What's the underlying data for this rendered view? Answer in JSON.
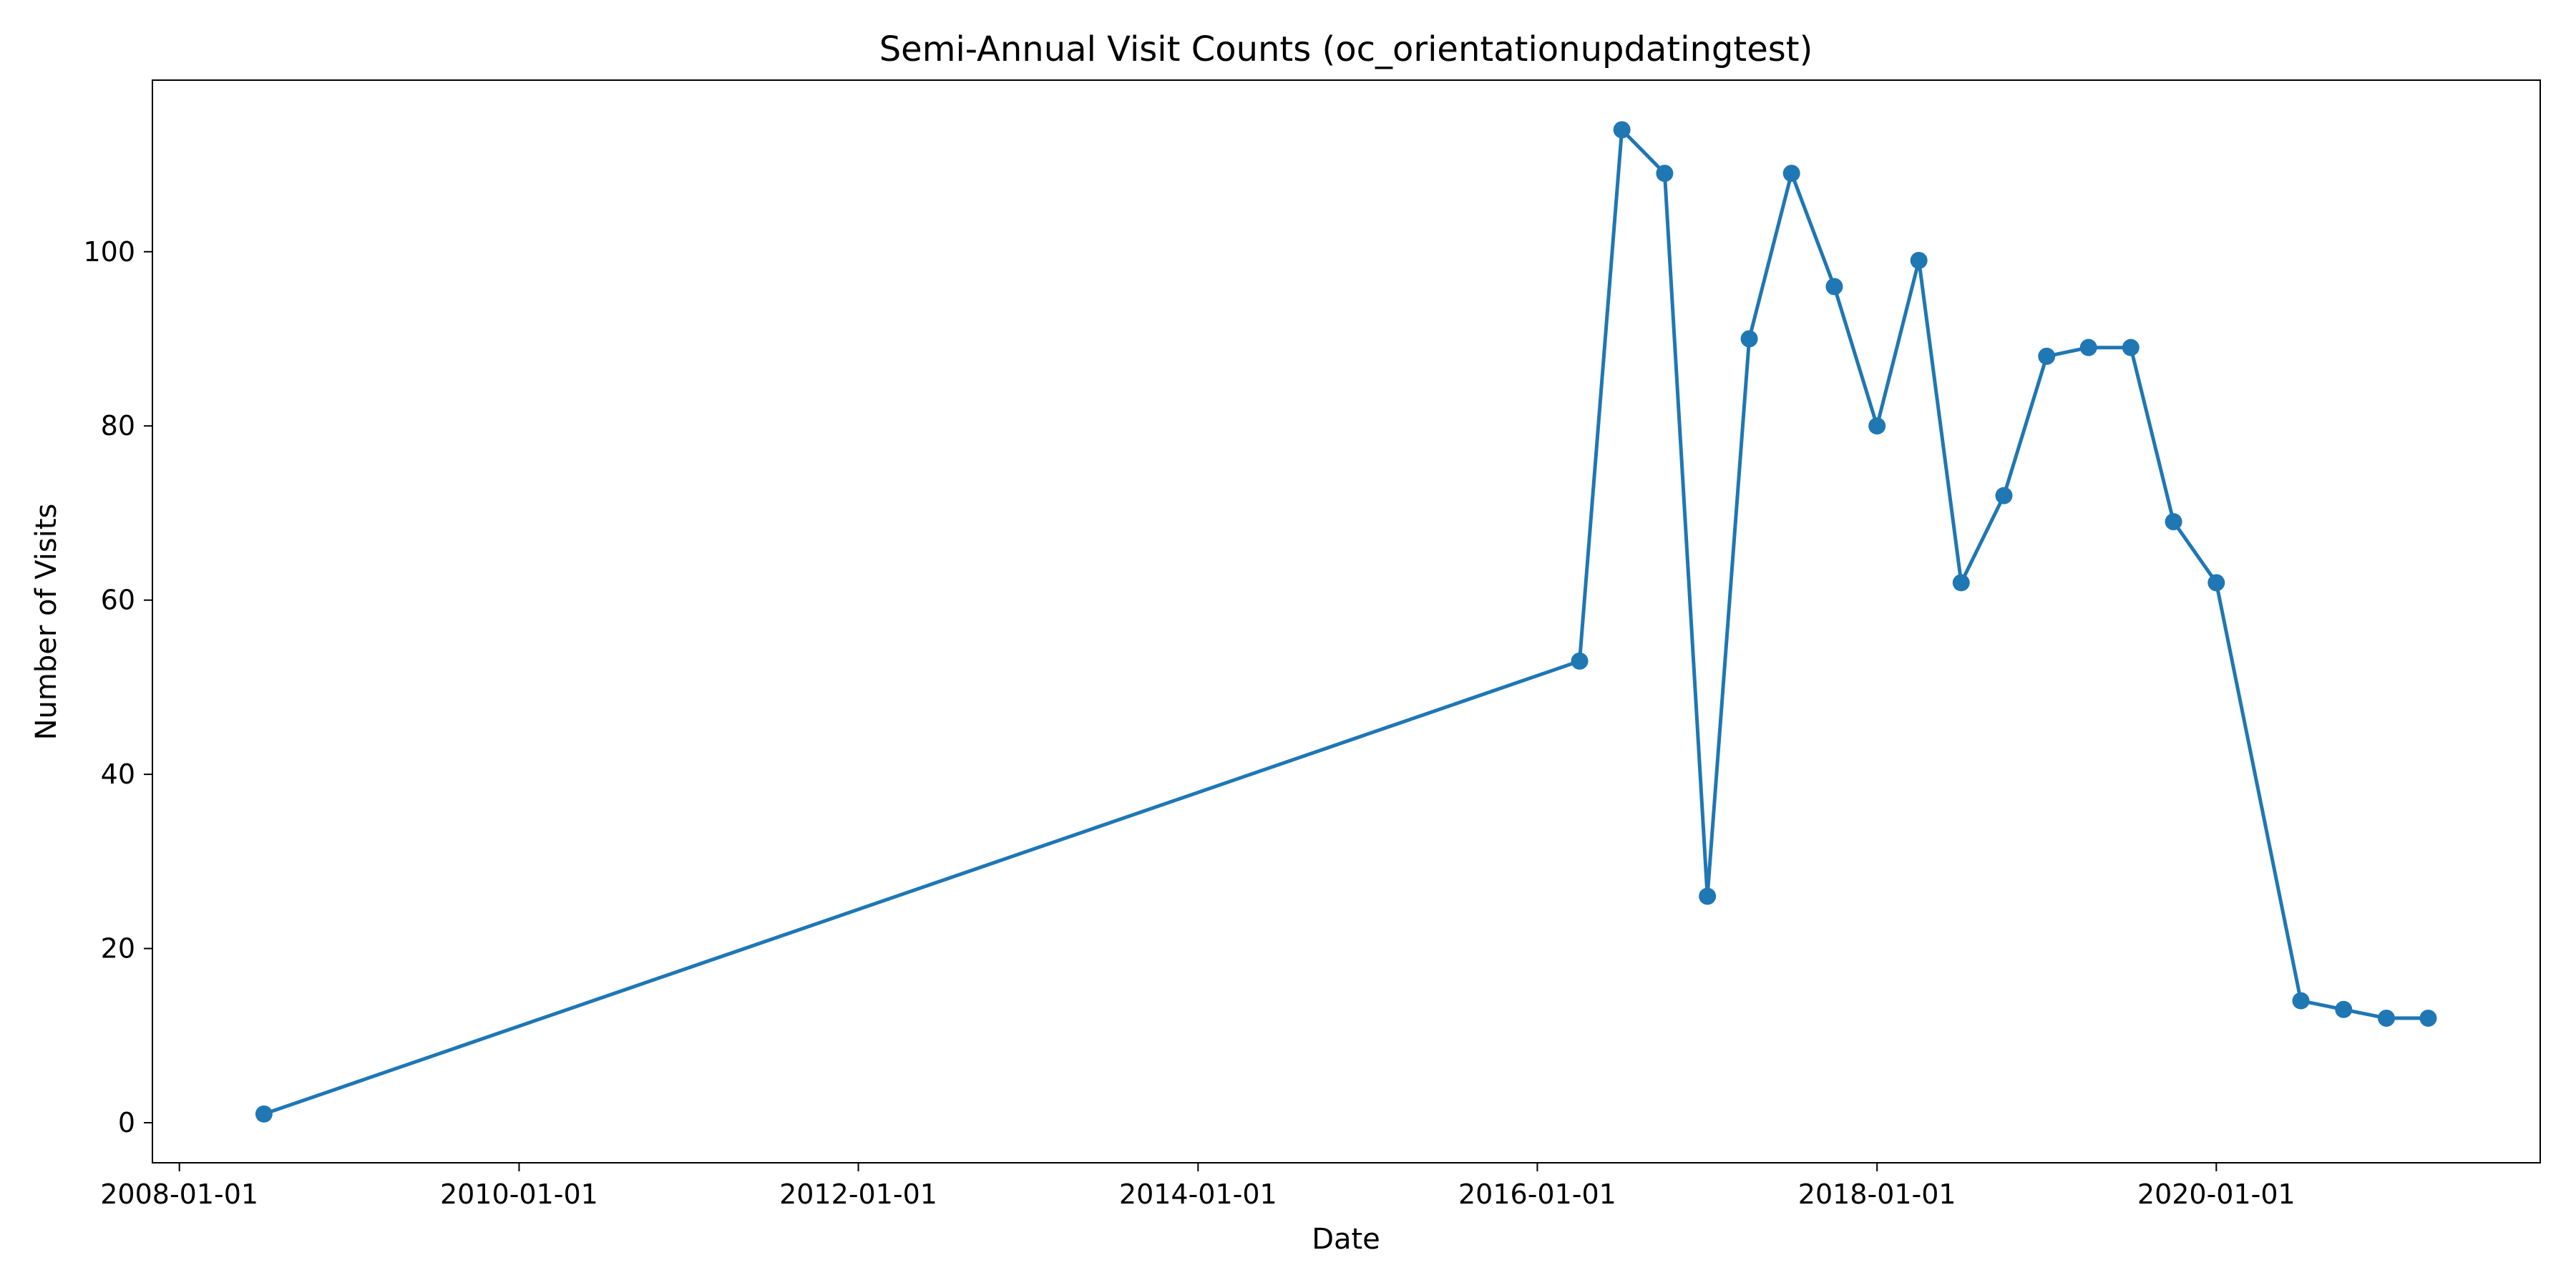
{
  "chart_data": {
    "type": "line",
    "title": "Semi-Annual Visit Counts (oc_orientationupdatingtest)",
    "xlabel": "Date",
    "ylabel": "Number of Visits",
    "x_axis_type": "date",
    "xlim": [
      "2007-11-04",
      "2021-11-28"
    ],
    "ylim": [
      -4.6,
      119.7
    ],
    "x_ticks": [
      "2008-01-01",
      "2010-01-01",
      "2012-01-01",
      "2014-01-01",
      "2016-01-01",
      "2018-01-01",
      "2020-01-01"
    ],
    "y_ticks": [
      0,
      20,
      40,
      60,
      80,
      100
    ],
    "grid": false,
    "legend": "none",
    "series_color": "#1f77b4",
    "marker": "circle",
    "series": [
      {
        "x": [
          "2008-07-01",
          "2016-04-01",
          "2016-07-01",
          "2016-10-01",
          "2017-01-01",
          "2017-04-01",
          "2017-07-01",
          "2017-10-01",
          "2018-01-01",
          "2018-04-01",
          "2018-07-01",
          "2018-10-01",
          "2019-01-01",
          "2019-04-01",
          "2019-07-01",
          "2019-10-01",
          "2020-01-01",
          "2020-07-01",
          "2020-10-01",
          "2021-01-01",
          "2021-04-01"
        ],
        "values": [
          1,
          53,
          114,
          109,
          26,
          90,
          109,
          96,
          80,
          99,
          62,
          72,
          88,
          89,
          89,
          69,
          62,
          14,
          13,
          12,
          12
        ]
      }
    ]
  }
}
